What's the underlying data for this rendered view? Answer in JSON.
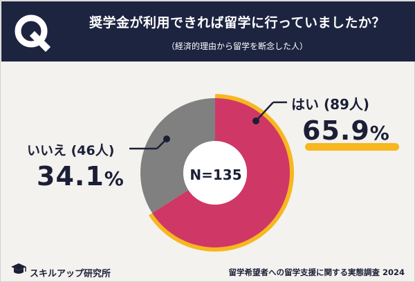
{
  "header": {
    "question_mark": "Q",
    "title": "奨学金が利用できれば留学に行っていましたか？",
    "subtitle": "（経済的理由から留学を断念した人）"
  },
  "chart_data": {
    "type": "pie",
    "style": "donut",
    "center_label": "N=135",
    "slices": [
      {
        "label": "はい",
        "count_label": "はい (89人)",
        "count": 89,
        "percent": 65.9,
        "percent_label": "65.9%",
        "color": "#cf3766"
      },
      {
        "label": "いいえ",
        "count_label": "いいえ (46人)",
        "count": 46,
        "percent": 34.1,
        "percent_label": "34.1%",
        "color": "#808080"
      }
    ],
    "accent_color": "#f7b71f"
  },
  "footer": {
    "brand": "スキルアップ研究所",
    "source": "留学希望者への留学支援に関する実態調査 2024"
  },
  "colors": {
    "header_bg": "#1d2440",
    "page_bg": "#f3f2ef",
    "text": "#1b1f36"
  }
}
